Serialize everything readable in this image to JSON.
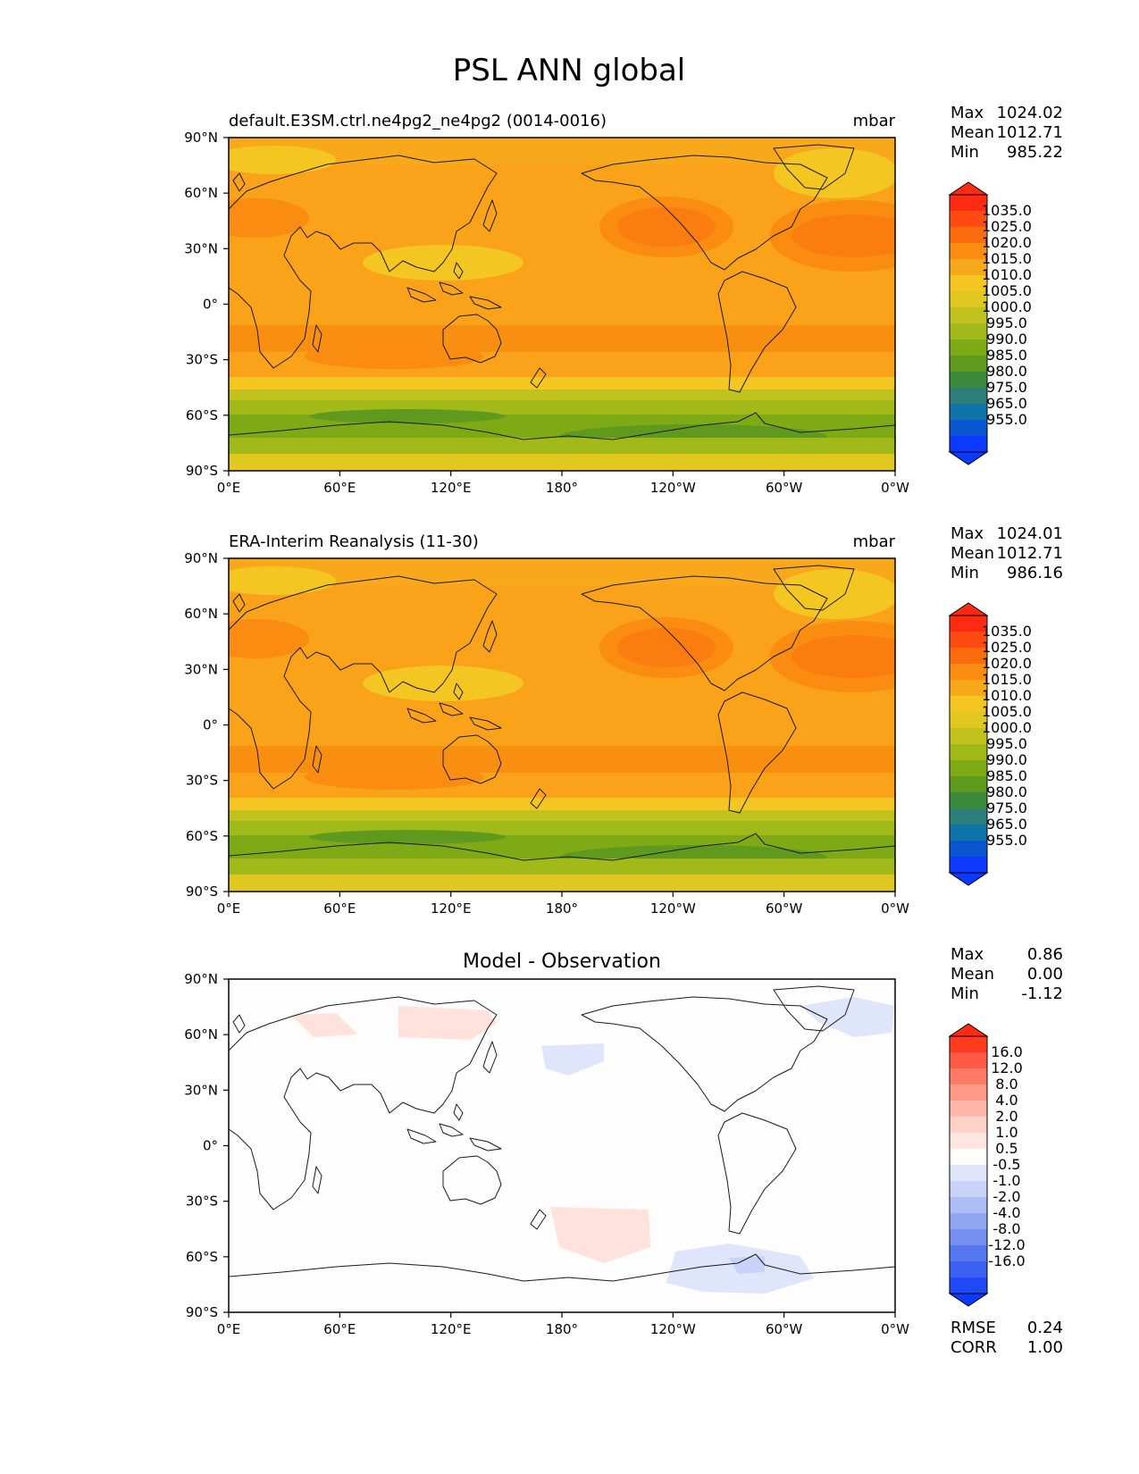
{
  "figure": {
    "title": "PSL ANN global",
    "x_ticks": [
      "0°E",
      "60°E",
      "120°E",
      "180°",
      "120°W",
      "60°W",
      "0°W"
    ],
    "y_ticks": [
      "90°N",
      "60°N",
      "30°N",
      "0°",
      "30°S",
      "60°S",
      "90°S"
    ]
  },
  "panels": [
    {
      "id": "test",
      "title": "default.E3SM.ctrl.ne4pg2_ne4pg2 (0014-0016)",
      "units": "mbar",
      "stats": {
        "labels": [
          "Max",
          "Mean",
          "Min"
        ],
        "values": [
          "1024.02",
          "1012.71",
          "985.22"
        ]
      },
      "colorbar": {
        "labels": [
          "1035.0",
          "1025.0",
          "1020.0",
          "1015.0",
          "1010.0",
          "1005.0",
          "1000.0",
          "995.0",
          "990.0",
          "985.0",
          "980.0",
          "975.0",
          "965.0",
          "955.0"
        ],
        "colors": [
          "#ff2a12",
          "#ff4b12",
          "#fb6c0f",
          "#f98c11",
          "#f7a81b",
          "#f4c621",
          "#e0c821",
          "#c2c21f",
          "#a2b91a",
          "#7eaa15",
          "#5f9a1f",
          "#3c8b3c",
          "#2d7d78",
          "#0f74a7",
          "#0a57d1",
          "#0d39ff"
        ],
        "arrow_top": "#ff2a12",
        "arrow_bottom": "#0d39ff"
      }
    },
    {
      "id": "reference",
      "title": "ERA-Interim Reanalysis (11-30)",
      "units": "mbar",
      "stats": {
        "labels": [
          "Max",
          "Mean",
          "Min"
        ],
        "values": [
          "1024.01",
          "1012.71",
          "986.16"
        ]
      },
      "colorbar": {
        "labels": [
          "1035.0",
          "1025.0",
          "1020.0",
          "1015.0",
          "1010.0",
          "1005.0",
          "1000.0",
          "995.0",
          "990.0",
          "985.0",
          "980.0",
          "975.0",
          "965.0",
          "955.0"
        ],
        "colors": [
          "#ff2a12",
          "#ff4b12",
          "#fb6c0f",
          "#f98c11",
          "#f7a81b",
          "#f4c621",
          "#e0c821",
          "#c2c21f",
          "#a2b91a",
          "#7eaa15",
          "#5f9a1f",
          "#3c8b3c",
          "#2d7d78",
          "#0f74a7",
          "#0a57d1",
          "#0d39ff"
        ],
        "arrow_top": "#ff2a12",
        "arrow_bottom": "#0d39ff"
      }
    },
    {
      "id": "diff",
      "title": "Model - Observation",
      "units": "",
      "stats": {
        "labels": [
          "Max",
          "Mean",
          "Min"
        ],
        "values": [
          "0.86",
          "0.00",
          "-1.12"
        ]
      },
      "colorbar": {
        "labels": [
          "16.0",
          "12.0",
          "8.0",
          "4.0",
          "2.0",
          "1.0",
          "0.5",
          "-0.5",
          "-1.0",
          "-2.0",
          "-4.0",
          "-8.0",
          "-12.0",
          "-16.0"
        ],
        "colors": [
          "#ff3a1e",
          "#ff5a46",
          "#ff7a66",
          "#ff9a88",
          "#ffb7aa",
          "#ffd2c8",
          "#ffe6e0",
          "#fdfdfd",
          "#dfe5fb",
          "#c9d3f9",
          "#afbdf6",
          "#93a6f3",
          "#768ff0",
          "#5676f0",
          "#3a5ff2",
          "#1f48f6"
        ],
        "arrow_top": "#ff2a12",
        "arrow_bottom": "#0d39ff"
      },
      "extra_stats": {
        "labels": [
          "RMSE",
          "CORR"
        ],
        "values": [
          "0.24",
          "1.00"
        ]
      }
    }
  ]
}
